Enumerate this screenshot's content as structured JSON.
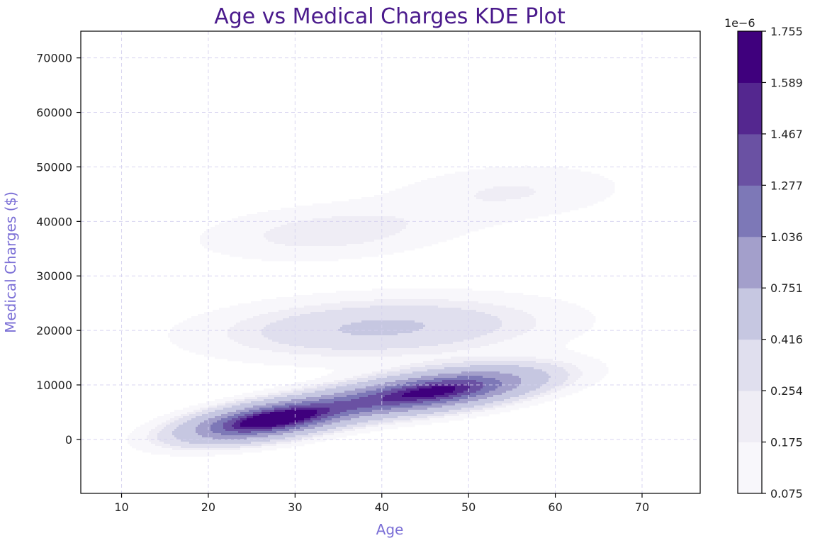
{
  "chart_data": {
    "type": "kde_contour",
    "title": "Age vs Medical Charges KDE Plot",
    "xlabel": "Age",
    "ylabel": "Medical Charges ($)",
    "xlim": [
      5.3,
      76.7
    ],
    "ylim": [
      -9900,
      74900
    ],
    "xticks": [
      10,
      20,
      30,
      40,
      50,
      60,
      70
    ],
    "yticks": [
      0,
      10000,
      20000,
      30000,
      40000,
      50000,
      60000,
      70000
    ],
    "grid": true,
    "colormap": "Purples",
    "colorbar": {
      "scale_label": "1e−6",
      "levels": [
        "0.075",
        "0.175",
        "0.254",
        "0.416",
        "0.751",
        "1.036",
        "1.277",
        "1.467",
        "1.589",
        "1.755"
      ],
      "colors": [
        "#f8f7fb",
        "#efedf5",
        "#e0dfee",
        "#c6c7e1",
        "#a39fcb",
        "#7d78b7",
        "#6a51a3",
        "#54278f",
        "#3f007d"
      ]
    },
    "components": [
      {
        "cx": 27,
        "cy": 3500,
        "sx": 6.5,
        "sy": 2600,
        "rho": 0.55,
        "amp": 1.0
      },
      {
        "cx": 46,
        "cy": 8800,
        "sx": 8,
        "sy": 2800,
        "rho": 0.55,
        "amp": 0.93
      },
      {
        "cx": 40,
        "cy": 20500,
        "sx": 13,
        "sy": 3800,
        "rho": 0.2,
        "amp": 0.25
      },
      {
        "cx": 34,
        "cy": 38000,
        "sx": 10,
        "sy": 3500,
        "rho": 0.25,
        "amp": 0.13
      },
      {
        "cx": 55,
        "cy": 45500,
        "sx": 9,
        "sy": 3500,
        "rho": 0.15,
        "amp": 0.1
      }
    ],
    "peak_density": 1.79
  },
  "colors": {
    "title": "#4a1a8c",
    "axis_label": "#7b6fd6",
    "grid": "#d4d0ee"
  }
}
